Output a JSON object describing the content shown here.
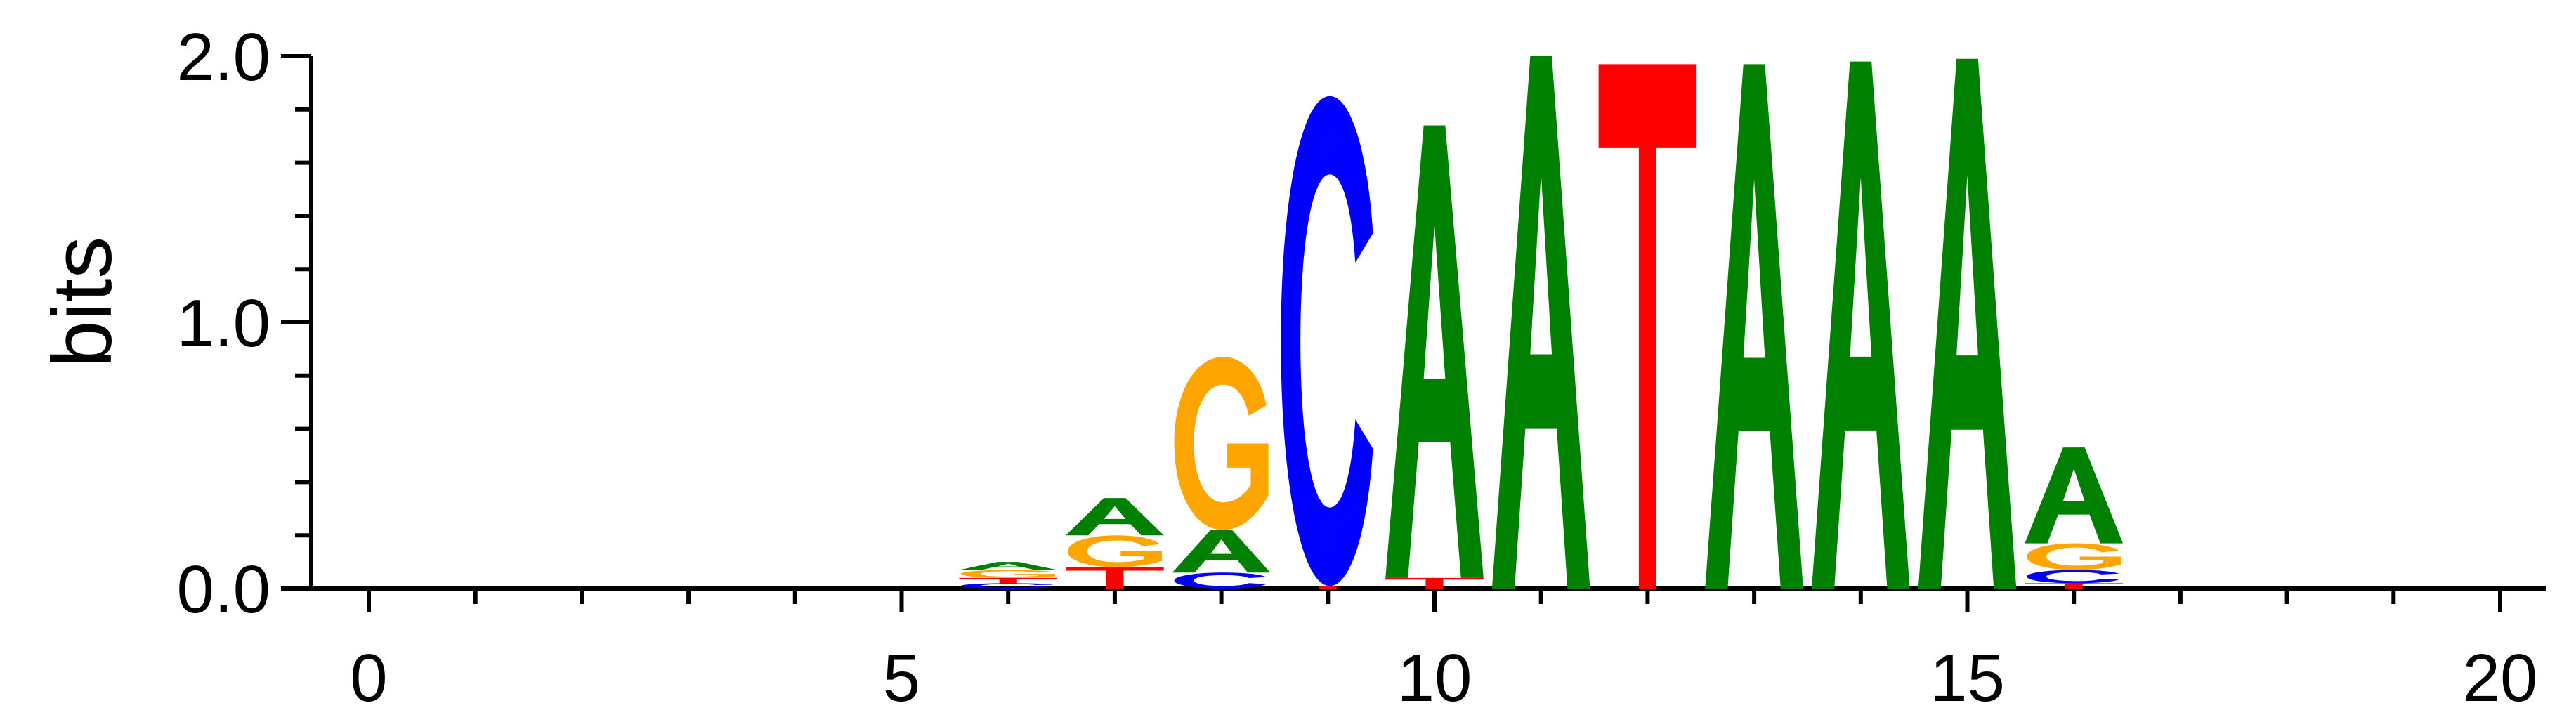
{
  "chart_data": {
    "type": "sequence-logo",
    "ylabel": "bits",
    "xlim": [
      -0.5,
      20.5
    ],
    "ylim": [
      0,
      2
    ],
    "x_ticks": [
      "0",
      "5",
      "10",
      "15",
      "20"
    ],
    "y_ticks": [
      "0.0",
      "1.0",
      "2.0"
    ],
    "colors": {
      "A": "#008000",
      "C": "#0000ff",
      "G": "#ffa500",
      "T": "#ff0000"
    },
    "positions": [
      {
        "x": 6,
        "letters": [
          {
            "base": "C",
            "bits": 0.02
          },
          {
            "base": "T",
            "bits": 0.02
          },
          {
            "base": "G",
            "bits": 0.03
          },
          {
            "base": "A",
            "bits": 0.03
          }
        ]
      },
      {
        "x": 7,
        "letters": [
          {
            "base": "T",
            "bits": 0.08
          },
          {
            "base": "G",
            "bits": 0.12
          },
          {
            "base": "A",
            "bits": 0.14
          }
        ]
      },
      {
        "x": 8,
        "letters": [
          {
            "base": "C",
            "bits": 0.06
          },
          {
            "base": "A",
            "bits": 0.16
          },
          {
            "base": "G",
            "bits": 0.65
          }
        ]
      },
      {
        "x": 9,
        "letters": [
          {
            "base": "T",
            "bits": 0.01
          },
          {
            "base": "C",
            "bits": 1.84
          }
        ]
      },
      {
        "x": 10,
        "letters": [
          {
            "base": "T",
            "bits": 0.04
          },
          {
            "base": "A",
            "bits": 1.7
          }
        ]
      },
      {
        "x": 11,
        "letters": [
          {
            "base": "A",
            "bits": 2.0
          }
        ]
      },
      {
        "x": 12,
        "letters": [
          {
            "base": "T",
            "bits": 1.97
          }
        ]
      },
      {
        "x": 13,
        "letters": [
          {
            "base": "A",
            "bits": 1.97
          }
        ]
      },
      {
        "x": 14,
        "letters": [
          {
            "base": "A",
            "bits": 1.98
          }
        ]
      },
      {
        "x": 15,
        "letters": [
          {
            "base": "A",
            "bits": 1.99
          }
        ]
      },
      {
        "x": 16,
        "letters": [
          {
            "base": "T",
            "bits": 0.02
          },
          {
            "base": "C",
            "bits": 0.05
          },
          {
            "base": "G",
            "bits": 0.1
          },
          {
            "base": "A",
            "bits": 0.36
          }
        ]
      }
    ]
  }
}
